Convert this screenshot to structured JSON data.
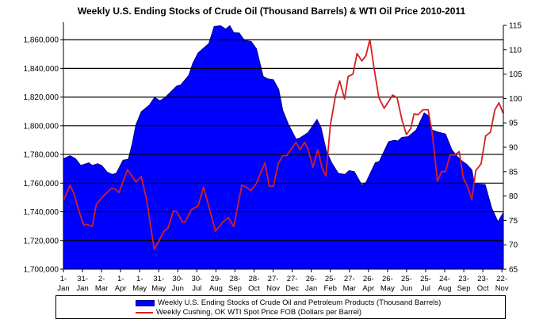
{
  "chart_data": {
    "type": "area+line",
    "title": "Weekly U.S. Ending Stocks of Crude Oil  (Thousand Barrels) & WTI Oil Price 2010-2011",
    "xlabel": "",
    "x_unit": "weeks since 1-Jan-2010",
    "xlim": [
      0,
      98.9
    ],
    "x_ticks": [
      {
        "week": 0,
        "label": [
          "1-",
          "Jan"
        ]
      },
      {
        "week": 4.29,
        "label": [
          "31-",
          "Jan"
        ]
      },
      {
        "week": 8.57,
        "label": [
          "2-",
          "Mar"
        ]
      },
      {
        "week": 12.86,
        "label": [
          "1-",
          "Apr"
        ]
      },
      {
        "week": 17.14,
        "label": [
          "1-",
          "May"
        ]
      },
      {
        "week": 21.43,
        "label": [
          "31-",
          "May"
        ]
      },
      {
        "week": 25.71,
        "label": [
          "30-",
          "Jun"
        ]
      },
      {
        "week": 30.0,
        "label": [
          "30-",
          "Jul"
        ]
      },
      {
        "week": 34.29,
        "label": [
          "29-",
          "Aug"
        ]
      },
      {
        "week": 38.57,
        "label": [
          "28-",
          "Sep"
        ]
      },
      {
        "week": 42.86,
        "label": [
          "28-",
          "Oct"
        ]
      },
      {
        "week": 47.14,
        "label": [
          "27-",
          "Nov"
        ]
      },
      {
        "week": 51.43,
        "label": [
          "27-",
          "Dec"
        ]
      },
      {
        "week": 55.71,
        "label": [
          "26-",
          "Jan"
        ]
      },
      {
        "week": 60.0,
        "label": [
          "25-",
          "Feb"
        ]
      },
      {
        "week": 64.29,
        "label": [
          "27-",
          "Mar"
        ]
      },
      {
        "week": 68.57,
        "label": [
          "26-",
          "Apr"
        ]
      },
      {
        "week": 72.86,
        "label": [
          "26-",
          "May"
        ]
      },
      {
        "week": 77.14,
        "label": [
          "25-",
          "Jun"
        ]
      },
      {
        "week": 81.43,
        "label": [
          "25-",
          "Jul"
        ]
      },
      {
        "week": 85.71,
        "label": [
          "24-",
          "Aug"
        ]
      },
      {
        "week": 90.0,
        "label": [
          "23-",
          "Sep"
        ]
      },
      {
        "week": 94.29,
        "label": [
          "23-",
          "Oct"
        ]
      },
      {
        "week": 98.57,
        "label": [
          "22-",
          "Nov"
        ]
      }
    ],
    "y_left": {
      "ylim": [
        1700000,
        1870000
      ],
      "ticks": [
        1700000,
        1720000,
        1740000,
        1760000,
        1780000,
        1800000,
        1820000,
        1840000,
        1860000
      ],
      "tick_labels": [
        "1,700,000",
        "1,720,000",
        "1,740,000",
        "1,760,000",
        "1,780,000",
        "1,800,000",
        "1,820,000",
        "1,840,000",
        "1,860,000"
      ],
      "grid": true
    },
    "y_right": {
      "ylim": [
        65,
        115
      ],
      "ticks": [
        65,
        70,
        75,
        80,
        85,
        90,
        95,
        100,
        105,
        110,
        115
      ],
      "tick_labels": [
        "65",
        "70",
        "75",
        "80",
        "85",
        "90",
        "95",
        "100",
        "105",
        "110",
        "115"
      ]
    },
    "legend_position": "bottom",
    "series": [
      {
        "name": "Weekly U.S. Ending Stocks of Crude Oil and Petroleum Products  (Thousand Barrels)",
        "type": "area",
        "axis": "left",
        "color": "#0000ff",
        "x": [
          0,
          1.5,
          2.7,
          3.9,
          5.7,
          6.5,
          7.7,
          8.6,
          9.8,
          11,
          11.9,
          13.4,
          14.6,
          15.5,
          16.3,
          17.5,
          19.3,
          20.5,
          21.7,
          22.9,
          24.1,
          25.5,
          26.4,
          28.2,
          29.1,
          30.3,
          32.7,
          33.9,
          35.3,
          36.5,
          37.4,
          38.3,
          39.5,
          40.7,
          42.2,
          43.4,
          44.9,
          46,
          47.2,
          48.4,
          49.3,
          50.5,
          52.3,
          53.2,
          55,
          57,
          57.9,
          59.1,
          60.3,
          61.8,
          63.3,
          64.2,
          65.4,
          67.1,
          68,
          70.1,
          71,
          73.1,
          74.3,
          75.2,
          76.1,
          77.5,
          79.3,
          81.1,
          82,
          82.9,
          84.1,
          85.9,
          87.3,
          88.5,
          89.7,
          90.6,
          91.8,
          92.4,
          94.8,
          96.3,
          97.7,
          98.9
        ],
        "values": [
          1776900,
          1779100,
          1777000,
          1772300,
          1774100,
          1772300,
          1773500,
          1772300,
          1767800,
          1766000,
          1766900,
          1776000,
          1776600,
          1787800,
          1800600,
          1809700,
          1814300,
          1819800,
          1817400,
          1819800,
          1823400,
          1827700,
          1828500,
          1835300,
          1843600,
          1850800,
          1857300,
          1869200,
          1869700,
          1867400,
          1869700,
          1865000,
          1864700,
          1859500,
          1858800,
          1853600,
          1834400,
          1832600,
          1832000,
          1825300,
          1810700,
          1801500,
          1790600,
          1791500,
          1795200,
          1804300,
          1798800,
          1782400,
          1774100,
          1766800,
          1766000,
          1768700,
          1768000,
          1758600,
          1760400,
          1774100,
          1775000,
          1788800,
          1789800,
          1789400,
          1791900,
          1792400,
          1797000,
          1808900,
          1807100,
          1797000,
          1795700,
          1794200,
          1783300,
          1778700,
          1775100,
          1773300,
          1769200,
          1759500,
          1759000,
          1742400,
          1733000,
          1739600
        ]
      },
      {
        "name": "Weekly Cushing, OK WTI Spot Price FOB  (Dollars per Barrel)",
        "type": "line",
        "axis": "right",
        "color": "#d42020",
        "x": [
          0,
          1.5,
          2.4,
          3.6,
          4.6,
          5.0,
          6.5,
          7.4,
          8.9,
          10.7,
          11.6,
          12.5,
          14.4,
          16.3,
          17.5,
          18.7,
          20.4,
          21.4,
          22.6,
          23.5,
          24.7,
          25.5,
          26.7,
          27.3,
          28.8,
          30.3,
          31.5,
          34.2,
          35.7,
          37.1,
          38.3,
          40.1,
          40.6,
          42.2,
          43.4,
          45.3,
          46.3,
          47.2,
          48.3,
          49.3,
          50.2,
          52.3,
          53.2,
          54.2,
          55,
          56.1,
          57.2,
          58.2,
          59,
          60,
          61.2,
          62.1,
          63.2,
          64,
          65.1,
          66,
          67.1,
          68,
          68.9,
          69.8,
          70.9,
          72.1,
          73.1,
          74,
          75,
          76.1,
          77.1,
          78.1,
          78.8,
          79.8,
          80.8,
          82,
          82.9,
          84.1,
          85,
          85.9,
          86.9,
          87.9,
          89,
          89.9,
          90.9,
          91.8,
          92.7,
          93.9,
          94.9,
          96,
          97,
          97.9,
          98.9
        ],
        "values": [
          79.1,
          82.2,
          80.4,
          76.6,
          74.0,
          74.2,
          73.8,
          78.3,
          79.9,
          81.5,
          81.5,
          80.7,
          85.4,
          82.9,
          84.0,
          79.3,
          69.1,
          70.7,
          72.8,
          73.4,
          76.9,
          76.8,
          74.7,
          74.6,
          77.2,
          78.0,
          81.8,
          72.8,
          74.5,
          75.6,
          73.7,
          82.2,
          82.1,
          81.1,
          82.6,
          86.8,
          82.0,
          82.0,
          86.6,
          88.3,
          88.3,
          91.0,
          89.5,
          91.0,
          89.6,
          85.9,
          89.5,
          85.6,
          84.1,
          94.5,
          100.7,
          103.6,
          99.9,
          104.5,
          105.0,
          109.2,
          107.7,
          108.8,
          112.1,
          106.4,
          100.2,
          98.0,
          99.4,
          100.7,
          100.2,
          95.6,
          92.6,
          93.9,
          96.8,
          96.7,
          97.7,
          97.7,
          92.9,
          83.0,
          85.0,
          85.0,
          88.4,
          88.4,
          89.1,
          83.7,
          81.8,
          79.3,
          85.2,
          86.6,
          92.3,
          93.1,
          97.7,
          99.1,
          96.9
        ]
      }
    ]
  }
}
